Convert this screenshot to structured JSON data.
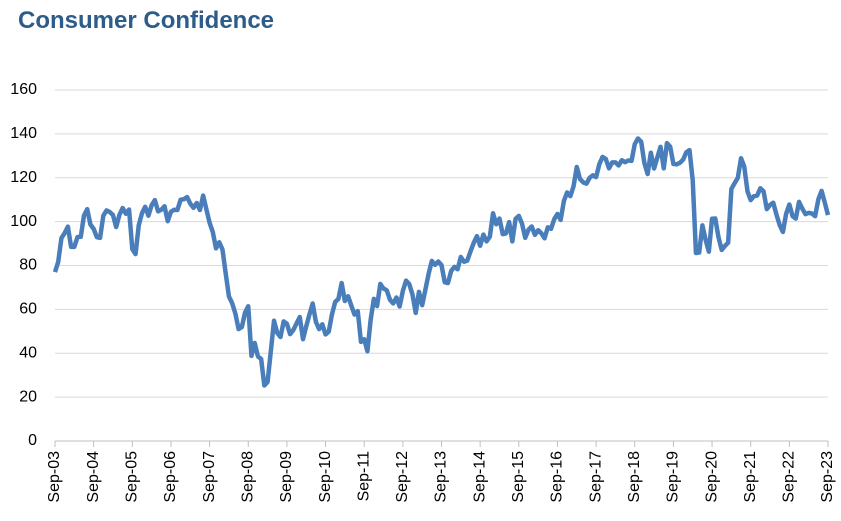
{
  "chart_data": {
    "type": "line",
    "title": "Consumer Confidence",
    "categories": [
      "Sep-03",
      null,
      null,
      null,
      null,
      null,
      null,
      null,
      null,
      null,
      null,
      null,
      "Sep-04",
      null,
      null,
      null,
      null,
      null,
      null,
      null,
      null,
      null,
      null,
      null,
      "Sep-05",
      null,
      null,
      null,
      null,
      null,
      null,
      null,
      null,
      null,
      null,
      null,
      "Sep-06",
      null,
      null,
      null,
      null,
      null,
      null,
      null,
      null,
      null,
      null,
      null,
      "Sep-07",
      null,
      null,
      null,
      null,
      null,
      null,
      null,
      null,
      null,
      null,
      null,
      "Sep-08",
      null,
      null,
      null,
      null,
      null,
      null,
      null,
      null,
      null,
      null,
      null,
      "Sep-09",
      null,
      null,
      null,
      null,
      null,
      null,
      null,
      null,
      null,
      null,
      null,
      "Sep-10",
      null,
      null,
      null,
      null,
      null,
      null,
      null,
      null,
      null,
      null,
      null,
      "Sep-11",
      null,
      null,
      null,
      null,
      null,
      null,
      null,
      null,
      null,
      null,
      null,
      "Sep-12",
      null,
      null,
      null,
      null,
      null,
      null,
      null,
      null,
      null,
      null,
      null,
      "Sep-13",
      null,
      null,
      null,
      null,
      null,
      null,
      null,
      null,
      null,
      null,
      null,
      "Sep-14",
      null,
      null,
      null,
      null,
      null,
      null,
      null,
      null,
      null,
      null,
      null,
      "Sep-15",
      null,
      null,
      null,
      null,
      null,
      null,
      null,
      null,
      null,
      null,
      null,
      "Sep-16",
      null,
      null,
      null,
      null,
      null,
      null,
      null,
      null,
      null,
      null,
      null,
      "Sep-17",
      null,
      null,
      null,
      null,
      null,
      null,
      null,
      null,
      null,
      null,
      null,
      "Sep-18",
      null,
      null,
      null,
      null,
      null,
      null,
      null,
      null,
      null,
      null,
      null,
      "Sep-19",
      null,
      null,
      null,
      null,
      null,
      null,
      null,
      null,
      null,
      null,
      null,
      "Sep-20",
      null,
      null,
      null,
      null,
      null,
      null,
      null,
      null,
      null,
      null,
      null,
      "Sep-21",
      null,
      null,
      null,
      null,
      null,
      null,
      null,
      null,
      null,
      null,
      null,
      "Sep-22",
      null,
      null,
      null,
      null,
      null,
      null,
      null,
      null,
      null,
      null,
      null,
      "Sep-23"
    ],
    "series": [
      {
        "color": "#4a7ebb",
        "values": [
          77,
          81.7,
          92.5,
          94.8,
          97.7,
          88.5,
          88.5,
          93,
          93.1,
          102.8,
          105.7,
          98.7,
          96.7,
          92.9,
          92.6,
          102.7,
          105.1,
          104.4,
          103,
          97.5,
          103.1,
          106.2,
          103.6,
          105.5,
          87.5,
          85.2,
          98.3,
          103.8,
          106.8,
          102.7,
          107.5,
          109.8,
          104.7,
          105.4,
          107,
          100.2,
          104.5,
          105.4,
          105.3,
          110,
          110.2,
          111.2,
          108.2,
          106.3,
          108.5,
          105.3,
          111.9,
          105.6,
          99.5,
          95.2,
          87.8,
          90.6,
          87.3,
          76.4,
          65.9,
          62.8,
          58.1,
          51,
          51.9,
          58.5,
          61.4,
          38.8,
          44.7,
          38.6,
          37.4,
          25.3,
          26.9,
          40.8,
          54.8,
          49.3,
          47.4,
          54.5,
          53.4,
          48.7,
          50.6,
          53.6,
          56.5,
          46.4,
          52.3,
          57.7,
          62.7,
          54.3,
          51,
          53.2,
          48.6,
          49.9,
          57.8,
          63.4,
          64.8,
          72,
          63.8,
          66,
          61.7,
          57.6,
          59.2,
          45.2,
          46.4,
          40.9,
          55.2,
          64.8,
          61.5,
          71.6,
          69.5,
          68.7,
          64.4,
          62.7,
          65.4,
          61.3,
          68.4,
          73.1,
          71.5,
          66.7,
          58.4,
          68,
          61.9,
          69,
          76.2,
          82.1,
          80.3,
          81.8,
          80.2,
          72.4,
          72,
          77.5,
          79.4,
          78.3,
          83.9,
          81.7,
          82.2,
          86.4,
          90.3,
          93.4,
          89,
          94.1,
          91,
          93.1,
          103.8,
          98.8,
          101.4,
          94.3,
          94.6,
          99.8,
          91,
          101.3,
          102.6,
          99.1,
          92.6,
          96.3,
          97.8,
          94,
          96.1,
          94.7,
          92.4,
          97.4,
          96.7,
          101.1,
          103.5,
          100.8,
          109.4,
          113.3,
          111.6,
          116.1,
          124.9,
          119.4,
          117.9,
          117.3,
          120,
          121.1,
          120.3,
          126.2,
          129.5,
          128.6,
          124.3,
          127,
          127,
          125.6,
          128,
          127.1,
          127.9,
          127.7,
          135.3,
          137.9,
          136.4,
          126.6,
          121.7,
          131.4,
          124.2,
          129.2,
          134.1,
          124.3,
          135.8,
          134.2,
          126.3,
          126.1,
          126.8,
          128.2,
          131.6,
          132.6,
          118.8,
          85.7,
          85.9,
          98.3,
          91.7,
          86.3,
          101.3,
          101.4,
          92.9,
          87.1,
          88.9,
          90.4,
          114.9,
          117.5,
          120,
          128.9,
          125.1,
          113.8,
          109.8,
          111.6,
          111.9,
          115.2,
          113.8,
          105.7,
          107.6,
          108.6,
          103.2,
          98.4,
          95.3,
          103.6,
          107.8,
          102.5,
          101.4,
          109,
          106,
          103.4,
          104,
          103.7,
          102.5,
          110.1,
          114,
          108.7,
          103
        ]
      }
    ],
    "ylim": [
      0,
      160
    ],
    "yticks": [
      0,
      20,
      40,
      60,
      80,
      100,
      120,
      140,
      160
    ],
    "grid": true
  }
}
